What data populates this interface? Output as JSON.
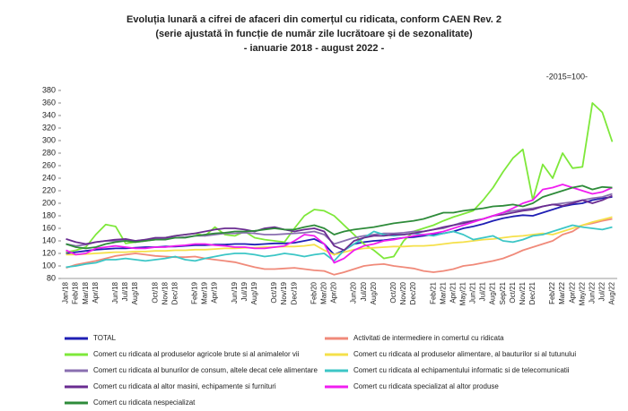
{
  "chart_data": {
    "type": "line",
    "title": [
      "Evoluția lunară a cifrei de afaceri din comerțul cu ridicata, conform CAEN Rev. 2",
      "(serie ajustată în funcție de număr zile lucrătoare și de sezonalitate)",
      "- ianuarie 2018 - august 2022 -"
    ],
    "annotation": "-2015=100-",
    "categories": [
      "Jan/18",
      "Feb/18",
      "Mar/18",
      "Apr/18",
      null,
      "Jun/18",
      "Jul/18",
      "Aug/18",
      null,
      "Oct/18",
      "Nov/18",
      "Dec/18",
      null,
      "Feb/19",
      "Mar/19",
      "Apr/19",
      null,
      "Jun/19",
      "Jul/19",
      "Aug/19",
      null,
      "Oct/19",
      "Nov/19",
      "Dec/19",
      null,
      "Feb/20",
      "Mar/20",
      "Apr/20",
      null,
      "Jun/20",
      "Jul/20",
      "Aug/20",
      null,
      "Oct/20",
      "Nov/20",
      "Dec/20",
      null,
      "Feb/21",
      "Mar/21",
      "Apr/21",
      "May/21",
      "Jun/21",
      "Jul/21",
      "Aug/21",
      "Sep/21",
      "Oct/21",
      "Nov/21",
      "Dec/21",
      null,
      "Feb/22",
      "Mar/22",
      "Apr/22",
      "May/22",
      "Jun/22",
      "Jul/22",
      "Aug/22"
    ],
    "ylim": [
      80,
      380
    ],
    "yticks": [
      80,
      100,
      120,
      140,
      160,
      180,
      200,
      220,
      240,
      260,
      280,
      300,
      320,
      340,
      360,
      380
    ],
    "series": [
      {
        "name": "TOTAL",
        "color": "#1f1fb4",
        "values": [
          120,
          122,
          124,
          126,
          127,
          128,
          128,
          129,
          130,
          130,
          131,
          131,
          132,
          133,
          133,
          134,
          134,
          135,
          135,
          134,
          135,
          136,
          136,
          137,
          140,
          143,
          135,
          118,
          125,
          135,
          138,
          140,
          141,
          143,
          145,
          146,
          148,
          150,
          152,
          155,
          160,
          163,
          167,
          172,
          176,
          179,
          181,
          180,
          185,
          190,
          195,
          198,
          200,
          205,
          208,
          210
        ]
      },
      {
        "name": "Activitati de intermediere in comertul cu ridicata",
        "color": "#f08a7a",
        "values": [
          97,
          102,
          105,
          108,
          112,
          116,
          118,
          120,
          118,
          116,
          115,
          114,
          114,
          115,
          112,
          110,
          108,
          106,
          102,
          98,
          95,
          95,
          96,
          97,
          95,
          93,
          92,
          86,
          90,
          95,
          100,
          102,
          103,
          100,
          98,
          96,
          92,
          90,
          92,
          95,
          100,
          102,
          105,
          108,
          112,
          118,
          125,
          130,
          135,
          140,
          150,
          155,
          165,
          168,
          172,
          175
        ]
      },
      {
        "name": "Comert cu ridicata al produselor agricole brute si al animalelor vii",
        "color": "#7ee83a",
        "values": [
          122,
          125,
          130,
          150,
          166,
          163,
          136,
          138,
          140,
          142,
          145,
          148,
          150,
          152,
          148,
          162,
          150,
          148,
          155,
          145,
          142,
          140,
          138,
          160,
          180,
          190,
          188,
          180,
          165,
          150,
          135,
          125,
          112,
          115,
          140,
          155,
          160,
          165,
          172,
          178,
          183,
          188,
          205,
          225,
          250,
          272,
          286,
          205,
          262,
          240,
          280,
          256,
          258,
          360,
          345,
          298
        ]
      },
      {
        "name": "Comert cu ridicata al produselor alimentare, al bauturilor si al tutunului",
        "color": "#f5e04a",
        "values": [
          118,
          118,
          119,
          120,
          121,
          122,
          122,
          123,
          123,
          124,
          124,
          125,
          125,
          126,
          126,
          127,
          128,
          128,
          129,
          129,
          130,
          130,
          131,
          131,
          132,
          134,
          125,
          118,
          122,
          126,
          128,
          129,
          130,
          131,
          131,
          132,
          132,
          133,
          135,
          137,
          138,
          140,
          142,
          143,
          145,
          147,
          148,
          150,
          152,
          150,
          155,
          160,
          165,
          170,
          174,
          178
        ]
      },
      {
        "name": "Comert cu ridicata al bunurilor de consum, altele decat cele alimentare",
        "color": "#8a6fb0",
        "values": [
          135,
          132,
          134,
          138,
          140,
          140,
          141,
          140,
          142,
          143,
          144,
          145,
          146,
          148,
          148,
          150,
          152,
          152,
          153,
          152,
          150,
          150,
          151,
          152,
          153,
          155,
          150,
          135,
          140,
          145,
          148,
          150,
          152,
          152,
          153,
          155,
          155,
          158,
          160,
          165,
          170,
          172,
          175,
          180,
          185,
          188,
          190,
          192,
          195,
          198,
          200,
          202,
          205,
          208,
          210,
          215
        ]
      },
      {
        "name": "Comert cu ridicata al echipamentului informatic si de telecomunicatii",
        "color": "#3cc6c6",
        "values": [
          98,
          100,
          103,
          105,
          110,
          110,
          112,
          110,
          108,
          110,
          112,
          115,
          110,
          108,
          112,
          115,
          118,
          120,
          120,
          118,
          115,
          117,
          120,
          118,
          115,
          118,
          120,
          108,
          125,
          135,
          145,
          155,
          150,
          148,
          150,
          152,
          150,
          148,
          152,
          155,
          150,
          142,
          145,
          148,
          140,
          138,
          142,
          148,
          150,
          155,
          160,
          165,
          162,
          160,
          158,
          162
        ]
      },
      {
        "name": "Comert cu ridicata al altor masini, echipamente si furnituri",
        "color": "#6a2c91",
        "values": [
          143,
          138,
          135,
          138,
          140,
          142,
          143,
          140,
          142,
          145,
          145,
          148,
          150,
          152,
          155,
          158,
          160,
          160,
          158,
          155,
          160,
          162,
          158,
          155,
          158,
          160,
          155,
          132,
          125,
          140,
          145,
          148,
          148,
          150,
          150,
          152,
          155,
          158,
          162,
          165,
          168,
          172,
          175,
          180,
          182,
          185,
          188,
          190,
          195,
          198,
          196,
          200,
          205,
          200,
          205,
          212
        ]
      },
      {
        "name": "Comert cu ridicata specializat al altor produse",
        "color": "#f01ef0",
        "values": [
          125,
          118,
          120,
          128,
          130,
          132,
          130,
          128,
          128,
          130,
          130,
          132,
          133,
          135,
          135,
          133,
          132,
          130,
          130,
          128,
          128,
          130,
          132,
          140,
          150,
          148,
          135,
          105,
          112,
          125,
          132,
          135,
          140,
          142,
          145,
          148,
          150,
          152,
          155,
          160,
          165,
          170,
          175,
          180,
          185,
          192,
          200,
          205,
          222,
          225,
          230,
          225,
          220,
          215,
          218,
          225
        ]
      },
      {
        "name": "Comert cu ridicata nespecializat",
        "color": "#2e8b3a",
        "values": [
          135,
          130,
          128,
          130,
          135,
          138,
          140,
          138,
          140,
          142,
          142,
          145,
          145,
          148,
          150,
          152,
          153,
          155,
          155,
          156,
          158,
          160,
          158,
          158,
          162,
          165,
          160,
          150,
          155,
          158,
          160,
          162,
          165,
          168,
          170,
          172,
          175,
          180,
          185,
          185,
          188,
          190,
          192,
          195,
          196,
          198,
          195,
          200,
          210,
          215,
          220,
          225,
          228,
          222,
          226,
          225
        ]
      }
    ]
  }
}
